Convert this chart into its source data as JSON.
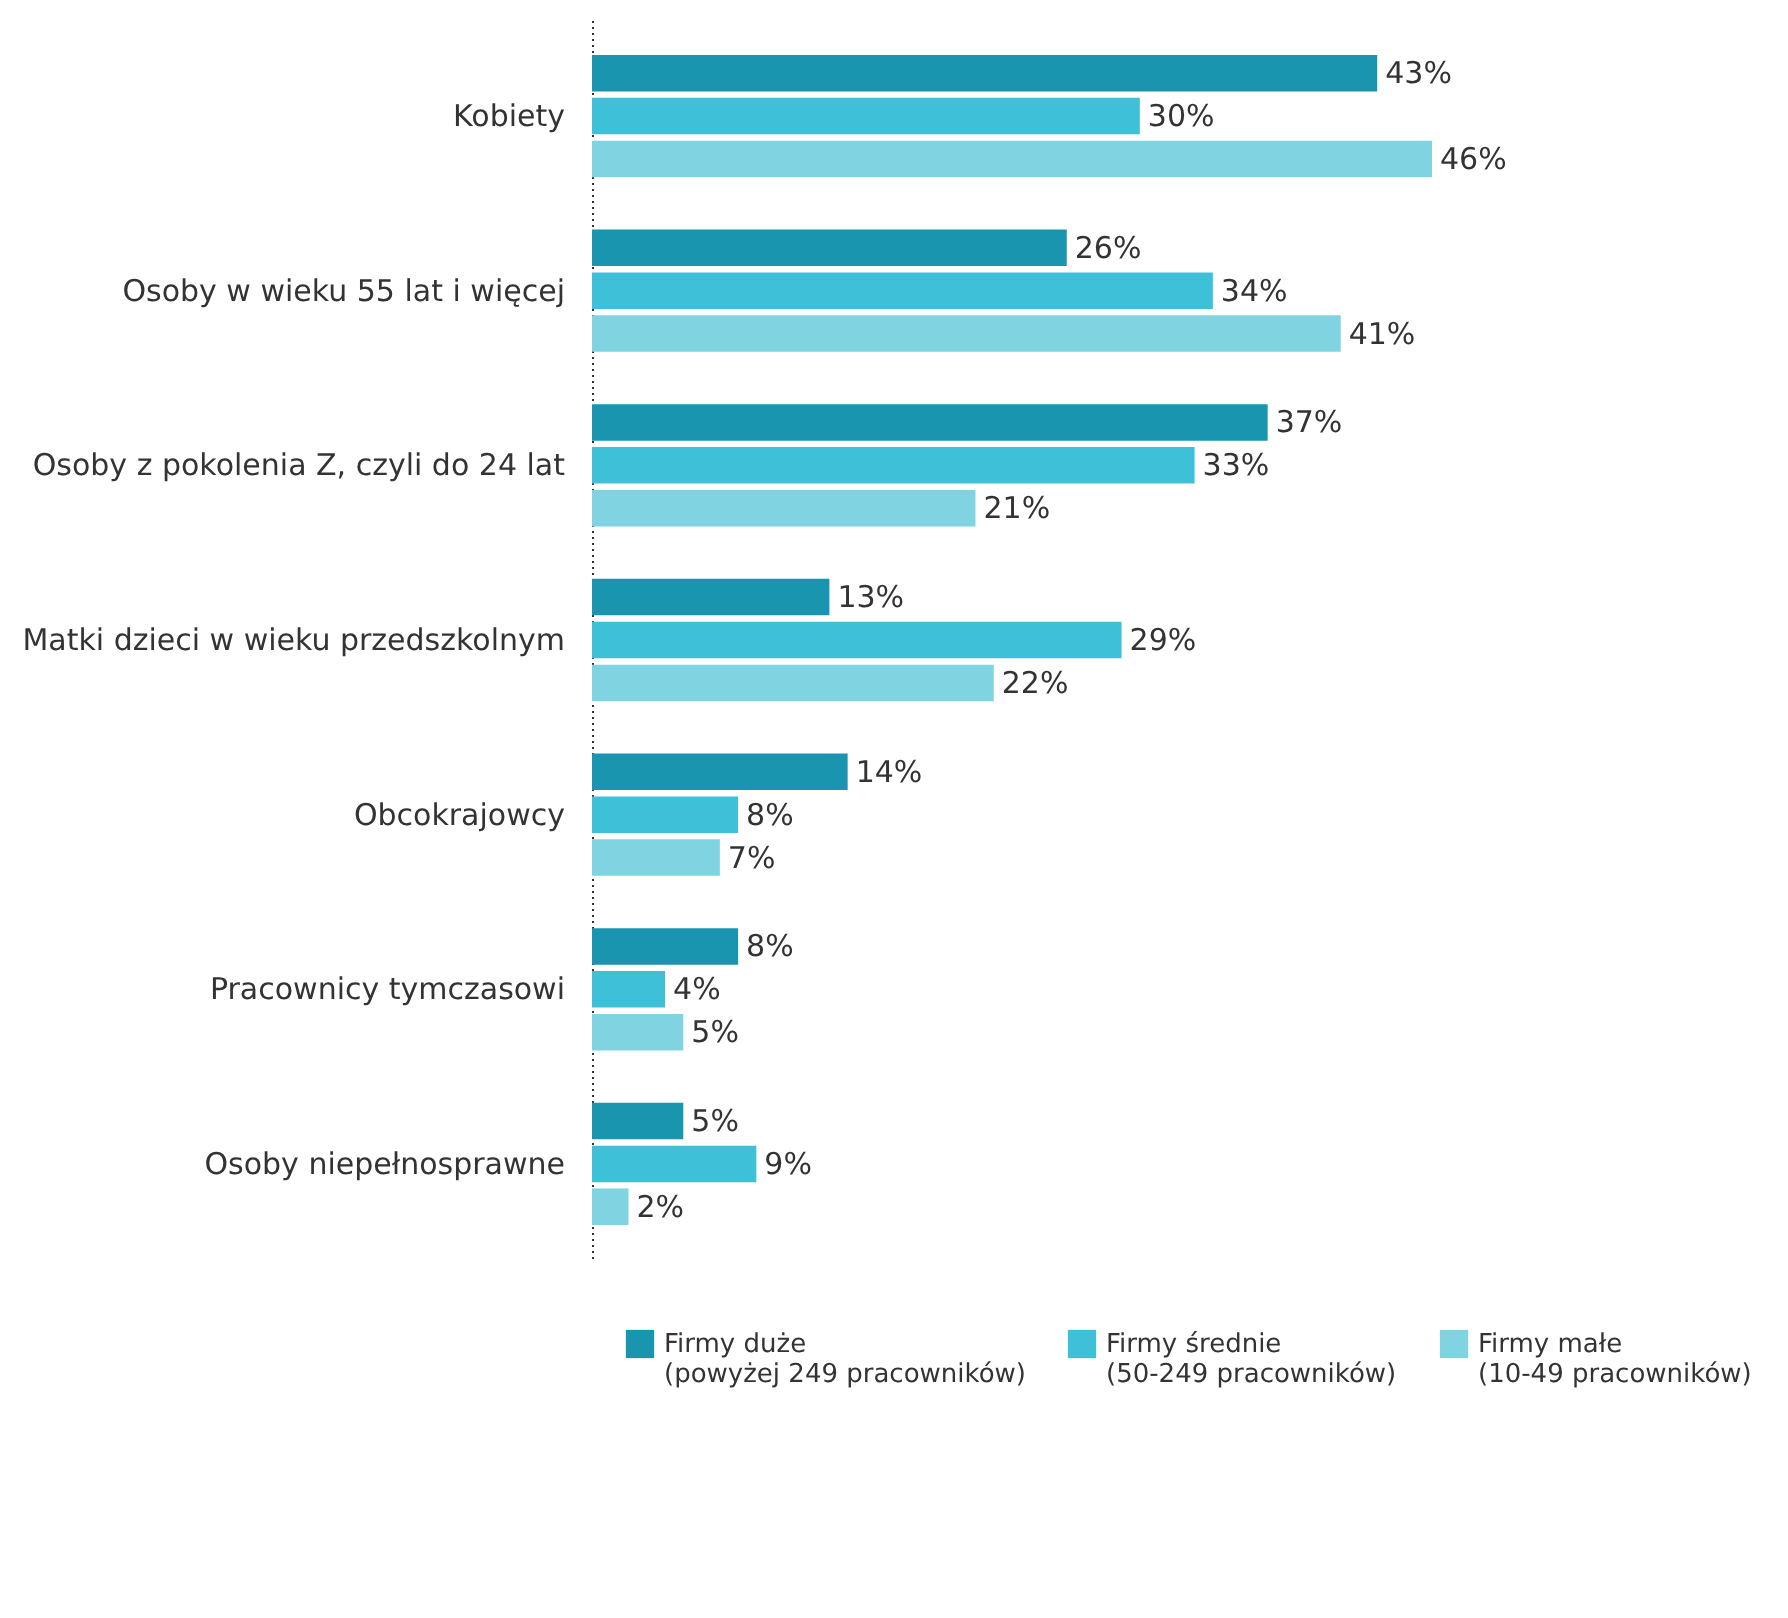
{
  "chart_data": {
    "type": "bar",
    "orientation": "horizontal",
    "legend": "bottom",
    "categories": [
      "Kobiety",
      "Osoby w wieku 55 lat i więcej",
      "Osoby z pokolenia Z, czyli do 24 lat",
      "Matki dzieci w wieku przedszkolnym",
      "Obcokrajowcy",
      "Pracownicy tymczasowi",
      "Osoby niepełnosprawne"
    ],
    "series": [
      {
        "name": "Firmy duże\n(powyżej 249 pracowników)",
        "color": "#1a95b0",
        "values": [
          43,
          26,
          37,
          13,
          14,
          8,
          5
        ],
        "value_labels": [
          "43%",
          "26%",
          "37%",
          "13%",
          "14%",
          "8%",
          "5%"
        ]
      },
      {
        "name": "Firmy średnie\n(50-249 pracowników)",
        "color": "#3ec1d8",
        "values": [
          30,
          34,
          33,
          29,
          8,
          4,
          9
        ],
        "value_labels": [
          "30%",
          "34%",
          "33%",
          "29%",
          "8%",
          "4%",
          "9%"
        ]
      },
      {
        "name": "Firmy małe\n(10-49 pracowników)",
        "color": "#80d3e1",
        "values": [
          46,
          41,
          21,
          22,
          7,
          5,
          2
        ],
        "value_labels": [
          "46%",
          "41%",
          "21%",
          "22%",
          "7%",
          "5%",
          "2%"
        ]
      }
    ]
  }
}
